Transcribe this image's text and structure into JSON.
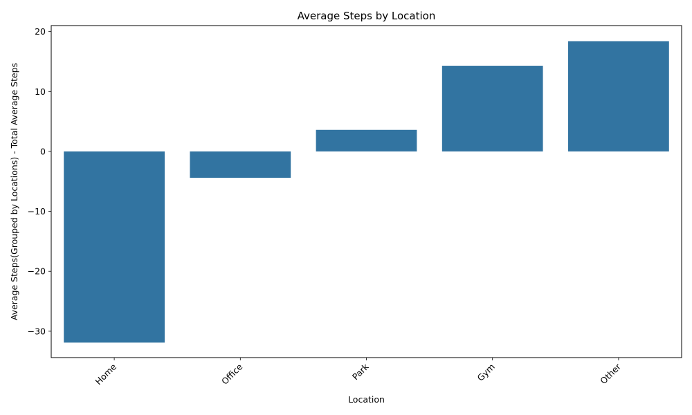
{
  "chart_data": {
    "type": "bar",
    "title": "Average Steps by Location",
    "xlabel": "Location",
    "ylabel": "Average Steps(Grouped by Locations) - Total Average Steps",
    "categories": [
      "Home",
      "Office",
      "Park",
      "Gym",
      "Other"
    ],
    "values": [
      -31.9,
      -4.4,
      3.6,
      14.3,
      18.4
    ],
    "ylim": [
      -34.4,
      21.0
    ],
    "yticks": [
      -30,
      -20,
      -10,
      0,
      10,
      20
    ],
    "ytick_labels": [
      "−30",
      "−20",
      "−10",
      "0",
      "10",
      "20"
    ],
    "xtick_rotation": 45,
    "grid": false,
    "legend": "none",
    "bar_color": "#3274a1"
  }
}
